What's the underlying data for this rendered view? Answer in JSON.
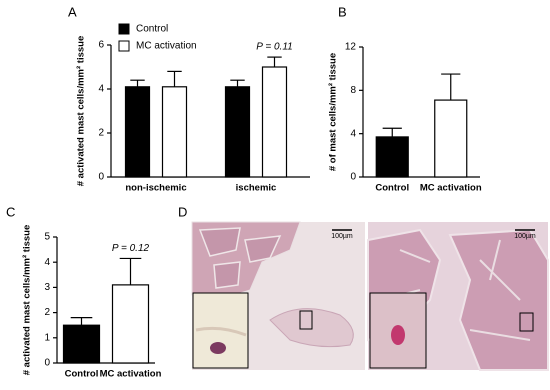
{
  "chart_data": [
    {
      "type": "bar",
      "panel": "A",
      "y_label": "# activated mast cells/mm² tissue",
      "categories": [
        "non-ischemic",
        "ischemic"
      ],
      "series": [
        {
          "name": "Control",
          "color": "#000000",
          "values": [
            4.1,
            4.1
          ],
          "errors": [
            0.3,
            0.3
          ]
        },
        {
          "name": "MC activation",
          "color": "#ffffff",
          "values": [
            4.1,
            5.0
          ],
          "errors": [
            0.7,
            0.45
          ]
        }
      ],
      "annotations": [
        {
          "text": "P = 0.11"
        }
      ],
      "ylim": [
        0,
        6
      ],
      "yticks": [
        0,
        2,
        4,
        6
      ],
      "legend": "top-left"
    },
    {
      "type": "bar",
      "panel": "B",
      "y_label": "# of mast cells/mm² tissue",
      "categories": [
        "Control",
        "MC activation"
      ],
      "series": [
        {
          "colors": [
            "#000000",
            "#ffffff"
          ],
          "values": [
            3.7,
            7.1
          ],
          "errors": [
            0.8,
            2.4
          ]
        }
      ],
      "ylim": [
        0,
        12
      ],
      "yticks": [
        0,
        4,
        8,
        12
      ]
    },
    {
      "type": "bar",
      "panel": "C",
      "y_label": "# activated mast cells/mm² tissue",
      "categories": [
        "Control",
        "MC activation"
      ],
      "series": [
        {
          "colors": [
            "#000000",
            "#ffffff"
          ],
          "values": [
            1.5,
            3.1
          ],
          "errors": [
            0.3,
            1.05
          ]
        }
      ],
      "annotations": [
        {
          "text": "P = 0.12"
        }
      ],
      "ylim": [
        0,
        5
      ],
      "yticks": [
        0,
        1,
        2,
        3,
        4,
        5
      ]
    }
  ],
  "micrographs": {
    "panel": "D",
    "scale_bars": [
      "100µm",
      "100µm"
    ]
  }
}
